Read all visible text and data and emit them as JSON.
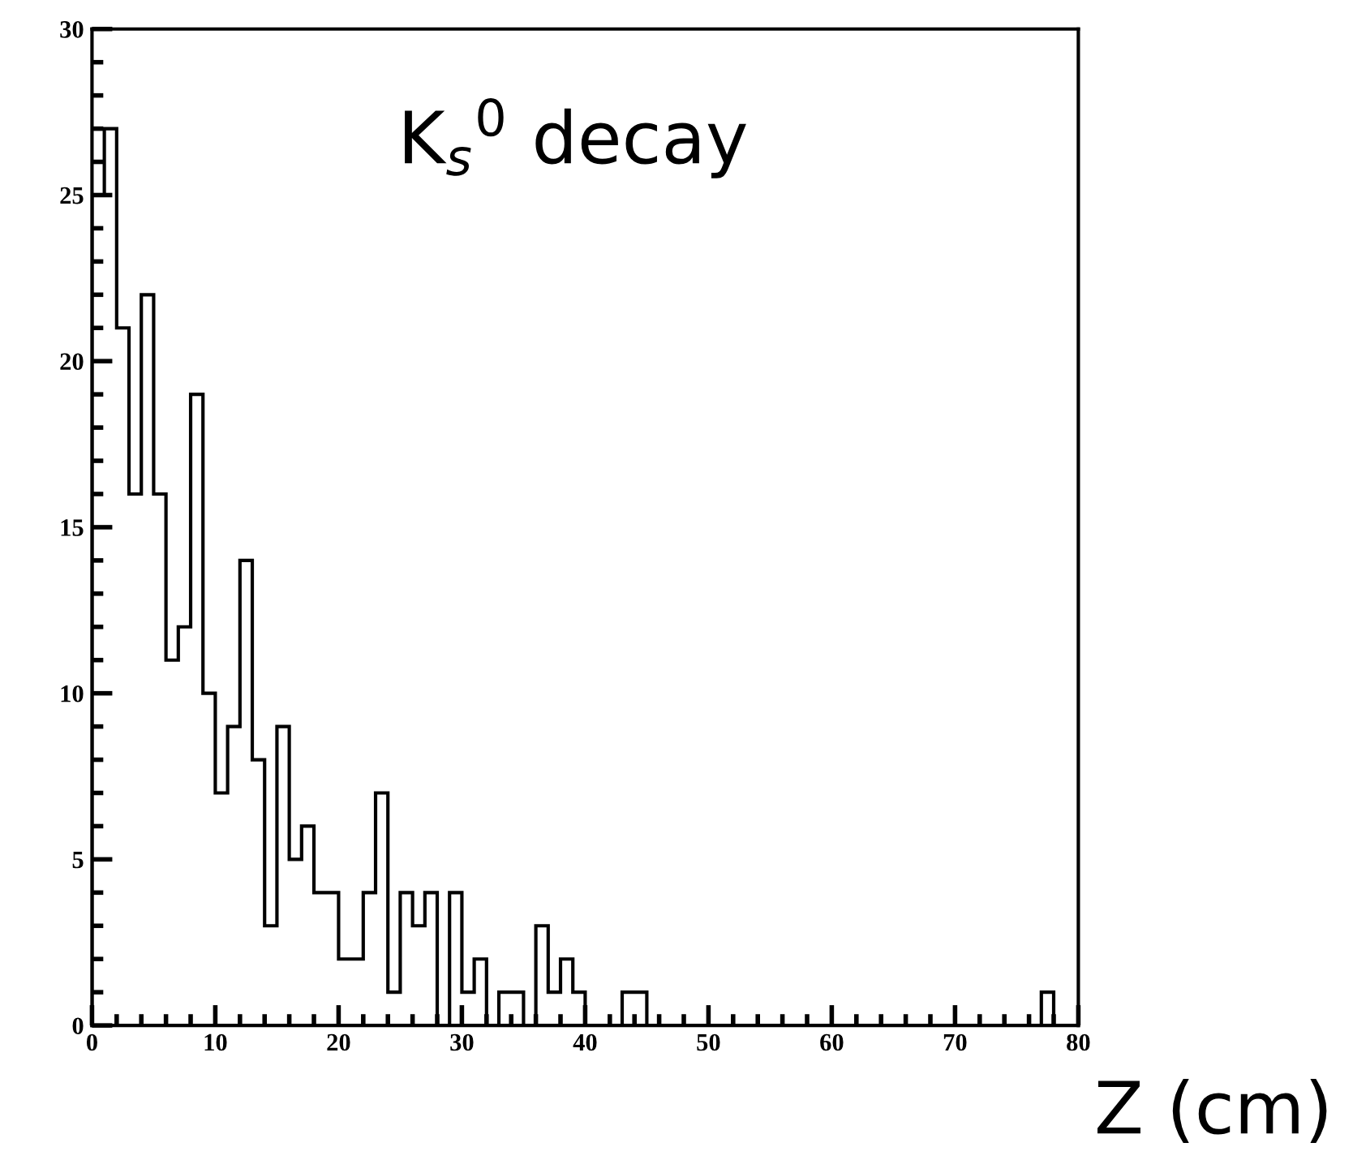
{
  "chart_data": {
    "type": "histogram",
    "title": "K$_{s}$$^{0}$ decay",
    "xlabel": "Z (cm)",
    "bins": [
      0,
      1,
      2,
      3,
      4,
      5,
      6,
      7,
      8,
      9,
      10,
      11,
      12,
      13,
      14,
      15,
      16,
      17,
      18,
      19,
      20,
      21,
      22,
      23,
      24,
      25,
      26,
      27,
      28,
      29,
      30,
      31,
      32,
      33,
      34,
      35,
      36,
      37,
      38,
      39,
      40,
      41,
      42,
      43,
      44,
      45,
      46,
      47,
      48,
      49,
      50,
      51,
      52,
      53,
      54,
      55,
      56,
      57,
      58,
      59,
      60,
      61,
      62,
      63,
      64,
      65,
      66,
      67,
      68,
      69,
      70,
      71,
      72,
      73,
      74,
      75,
      76,
      77,
      78,
      79,
      80
    ],
    "values": [
      25,
      27,
      21,
      16,
      22,
      16,
      11,
      12,
      19,
      10,
      7,
      9,
      14,
      8,
      3,
      9,
      5,
      6,
      4,
      4,
      2,
      2,
      4,
      7,
      1,
      4,
      3,
      4,
      0,
      4,
      1,
      2,
      0,
      1,
      1,
      0,
      3,
      1,
      2,
      1,
      0,
      0,
      0,
      1,
      1,
      0,
      0,
      0,
      0,
      0,
      0,
      0,
      0,
      0,
      0,
      0,
      0,
      0,
      0,
      0,
      0,
      0,
      0,
      0,
      0,
      0,
      0,
      0,
      0,
      0,
      0,
      0,
      0,
      0,
      0,
      0,
      0,
      1,
      0,
      0
    ],
    "color": "#000000",
    "xlim": [
      0,
      80
    ],
    "ylim": [
      0,
      30
    ],
    "xticks": [
      0,
      {
        "value": 2,
        "label": null
      },
      {
        "value": 4,
        "label": null
      },
      {
        "value": 6,
        "label": null
      },
      {
        "value": 8,
        "label": null
      },
      10,
      {
        "value": 12,
        "label": null
      },
      {
        "value": 14,
        "label": null
      },
      {
        "value": 16,
        "label": null
      },
      {
        "value": 18,
        "label": null
      },
      20,
      {
        "value": 22,
        "label": null
      },
      {
        "value": 24,
        "label": null
      },
      {
        "value": 26,
        "label": null
      },
      {
        "value": 28,
        "label": null
      },
      30,
      {
        "value": 32,
        "label": null
      },
      {
        "value": 34,
        "label": null
      },
      {
        "value": 36,
        "label": null
      },
      {
        "value": 38,
        "label": null
      },
      40,
      {
        "value": 42,
        "label": null
      },
      {
        "value": 44,
        "label": null
      },
      {
        "value": 46,
        "label": null
      },
      {
        "value": 48,
        "label": null
      },
      50,
      {
        "value": 52,
        "label": null
      },
      {
        "value": 54,
        "label": null
      },
      {
        "value": 56,
        "label": null
      },
      {
        "value": 58,
        "label": null
      },
      60,
      {
        "value": 62,
        "label": null
      },
      {
        "value": 64,
        "label": null
      },
      {
        "value": 66,
        "label": null
      },
      {
        "value": 68,
        "label": null
      },
      70,
      {
        "value": 72,
        "label": null
      },
      {
        "value": 74,
        "label": null
      },
      {
        "value": 76,
        "label": null
      },
      {
        "value": 78,
        "label": null
      },
      80
    ],
    "yticks": [
      0,
      {
        "value": 1,
        "label": null
      },
      {
        "value": 2,
        "label": null
      },
      {
        "value": 3,
        "label": null
      },
      {
        "value": 4,
        "label": null
      },
      5,
      {
        "value": 6,
        "label": null
      },
      {
        "value": 7,
        "label": null
      },
      {
        "value": 8,
        "label": null
      },
      {
        "value": 9,
        "label": null
      },
      10,
      {
        "value": 11,
        "label": null
      },
      {
        "value": 12,
        "label": null
      },
      {
        "value": 13,
        "label": null
      },
      {
        "value": 14,
        "label": null
      },
      15,
      {
        "value": 16,
        "label": null
      },
      {
        "value": 17,
        "label": null
      },
      {
        "value": 18,
        "label": null
      },
      {
        "value": 19,
        "label": null
      },
      20,
      {
        "value": 21,
        "label": null
      },
      {
        "value": 22,
        "label": null
      },
      {
        "value": 23,
        "label": null
      },
      {
        "value": 24,
        "label": null
      },
      25,
      {
        "value": 26,
        "label": null
      },
      {
        "value": 27,
        "label": null
      },
      {
        "value": 28,
        "label": null
      },
      {
        "value": 29,
        "label": null
      },
      30
    ],
    "grid": false,
    "legend": false
  }
}
